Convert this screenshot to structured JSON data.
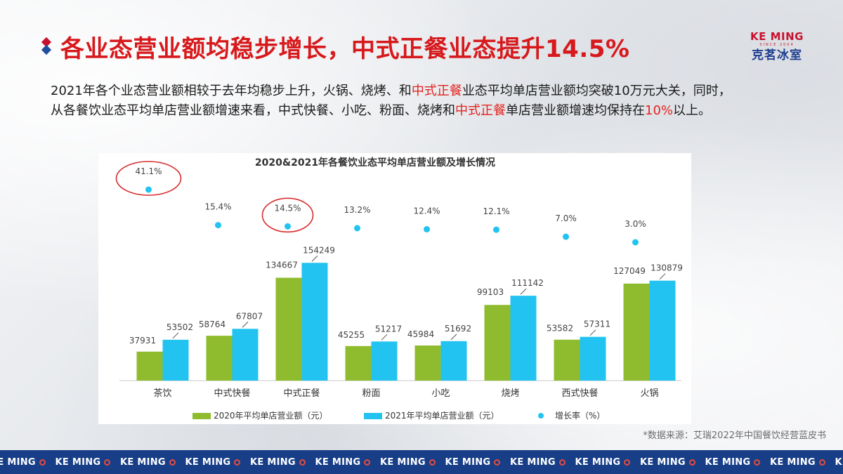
{
  "header": {
    "title": "各业态营业额均稳步增长，中式正餐业态提升14.5%",
    "logo_en": "KE MING",
    "logo_tag": "SINCE 2004",
    "logo_cn": "克茗冰室"
  },
  "description": {
    "p1": "2021年各个业态营业额相较于去年均稳步上升，火锅、烧烤、和",
    "hl1": "中式正餐",
    "p2": "业态平均单店营业额均突破10万元大关，同时，从各餐饮业态平均单店营业额增速来看，中式快餐、小吃、粉面、烧烤和",
    "hl2": "中式正餐",
    "p3": "单店营业额增速均保持在",
    "hl3": "10%",
    "p4": "以上。"
  },
  "chart_data": {
    "type": "bar",
    "title": "2020&2021年各餐饮业态平均单店营业额及增长情况",
    "categories": [
      "茶饮",
      "中式快餐",
      "中式正餐",
      "粉面",
      "小吃",
      "烧烤",
      "西式快餐",
      "火锅"
    ],
    "series": [
      {
        "name": "2020年平均单店营业额（元）",
        "values": [
          37931,
          58764,
          134667,
          45255,
          45984,
          99103,
          53582,
          127049
        ],
        "color": "#8fbc2e"
      },
      {
        "name": "2021年平均单店营业额（元）",
        "values": [
          53502,
          67807,
          154249,
          51217,
          51692,
          111142,
          57311,
          130879
        ],
        "color": "#22c3f0"
      }
    ],
    "growth": {
      "name": "增长率（%）",
      "values": [
        41.1,
        15.4,
        14.5,
        13.2,
        12.4,
        12.1,
        7.0,
        3.0
      ],
      "labels": [
        "41.1%",
        "15.4%",
        "14.5%",
        "13.2%",
        "12.4%",
        "12.1%",
        "7.0%",
        "3.0%"
      ],
      "color": "#22c3f0",
      "highlighted": [
        0,
        2
      ],
      "highlight_color": "#d62d2d"
    },
    "ylim": [
      0,
      160000
    ],
    "grid": false,
    "legend": "bottom"
  },
  "source": "*数据来源：艾瑞2022年中国餐饮经营蓝皮书",
  "footer_band": {
    "text": "KE MING",
    "color": "#173e87",
    "mark_color": "#e94b3c"
  }
}
